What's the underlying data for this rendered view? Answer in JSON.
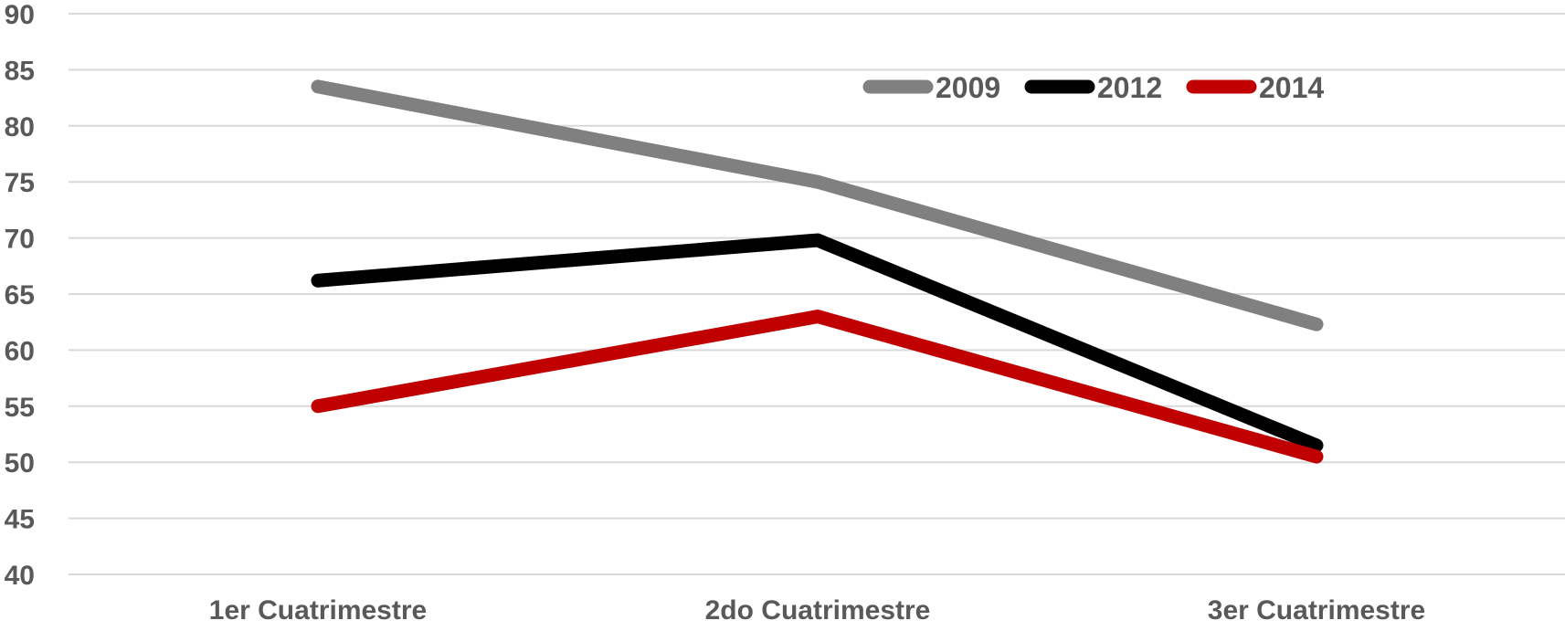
{
  "chart_data": {
    "type": "line",
    "categories": [
      "1er Cuatrimestre",
      "2do Cuatrimestre",
      "3er Cuatrimestre"
    ],
    "series": [
      {
        "name": "2009",
        "values": [
          83.5,
          75,
          62.3
        ],
        "color": "#808080"
      },
      {
        "name": "2012",
        "values": [
          66.2,
          69.8,
          51.5
        ],
        "color": "#000000"
      },
      {
        "name": "2014",
        "values": [
          55,
          63,
          50.5
        ],
        "color": "#c00000"
      }
    ],
    "y_ticks": [
      "40",
      "45",
      "50",
      "55",
      "60",
      "65",
      "70",
      "75",
      "80",
      "85",
      "90"
    ],
    "title": "",
    "xlabel": "",
    "ylabel": "",
    "ylim": [
      40,
      90
    ],
    "grid": true,
    "legend_position": "top-right"
  }
}
